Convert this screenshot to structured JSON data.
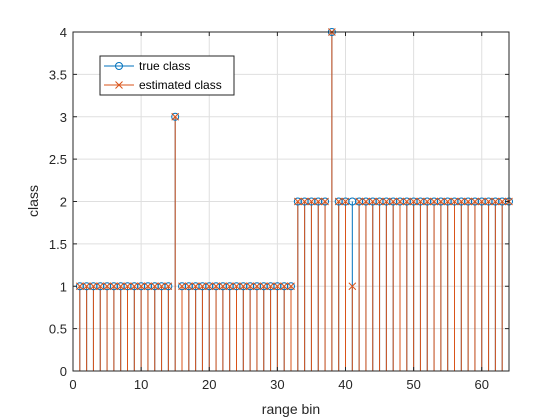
{
  "chart_data": {
    "type": "stem",
    "xlabel": "range bin",
    "ylabel": "class",
    "xlim": [
      0,
      64
    ],
    "ylim": [
      0,
      4
    ],
    "xticks": [
      0,
      10,
      20,
      30,
      40,
      50,
      60
    ],
    "yticks": [
      0,
      0.5,
      1,
      1.5,
      2,
      2.5,
      3,
      3.5,
      4
    ],
    "grid": true,
    "legend_position": "top-left",
    "x": [
      1,
      2,
      3,
      4,
      5,
      6,
      7,
      8,
      9,
      10,
      11,
      12,
      13,
      14,
      15,
      16,
      17,
      18,
      19,
      20,
      21,
      22,
      23,
      24,
      25,
      26,
      27,
      28,
      29,
      30,
      31,
      32,
      33,
      34,
      35,
      36,
      37,
      38,
      39,
      40,
      41,
      42,
      43,
      44,
      45,
      46,
      47,
      48,
      49,
      50,
      51,
      52,
      53,
      54,
      55,
      56,
      57,
      58,
      59,
      60,
      61,
      62,
      63,
      64
    ],
    "series": [
      {
        "name": "true class",
        "marker": "circle",
        "color": "#0072BD",
        "values": [
          1,
          1,
          1,
          1,
          1,
          1,
          1,
          1,
          1,
          1,
          1,
          1,
          1,
          1,
          3,
          1,
          1,
          1,
          1,
          1,
          1,
          1,
          1,
          1,
          1,
          1,
          1,
          1,
          1,
          1,
          1,
          1,
          2,
          2,
          2,
          2,
          2,
          4,
          2,
          2,
          2,
          2,
          2,
          2,
          2,
          2,
          2,
          2,
          2,
          2,
          2,
          2,
          2,
          2,
          2,
          2,
          2,
          2,
          2,
          2,
          2,
          2,
          2,
          2
        ]
      },
      {
        "name": "estimated class",
        "marker": "x",
        "color": "#D95319",
        "values": [
          1,
          1,
          1,
          1,
          1,
          1,
          1,
          1,
          1,
          1,
          1,
          1,
          1,
          1,
          3,
          1,
          1,
          1,
          1,
          1,
          1,
          1,
          1,
          1,
          1,
          1,
          1,
          1,
          1,
          1,
          1,
          1,
          2,
          2,
          2,
          2,
          2,
          4,
          2,
          2,
          1,
          2,
          2,
          2,
          2,
          2,
          2,
          2,
          2,
          2,
          2,
          2,
          2,
          2,
          2,
          2,
          2,
          2,
          2,
          2,
          2,
          2,
          2,
          2
        ]
      }
    ]
  }
}
